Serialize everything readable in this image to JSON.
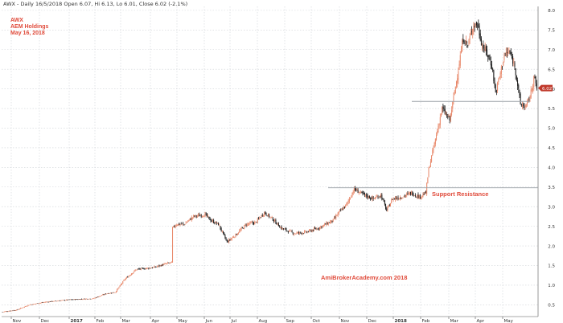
{
  "header": {
    "quote_line": "AWX - Daily 16/5/2018 Open 6.07, Hi 6.13, Lo 6.01, Close 6.02 (-2.1%)"
  },
  "legend": {
    "symbol": "AWX",
    "name": "AEM Holdings",
    "date": "May 16, 2018"
  },
  "annotations": {
    "support_resistance": "Support Resistance",
    "watermark": "AmiBrokerAcademy.com  2018"
  },
  "price_tag": "6.02",
  "colors": {
    "up": "#e8896b",
    "down": "#1a1a1a",
    "grid": "#cfd3d7",
    "line": "#9aa0a6",
    "text_red": "#e04a3a",
    "tag": "#c0392b"
  },
  "chart_data": {
    "type": "candlestick",
    "title": "",
    "ylim": [
      0.2,
      8.1
    ],
    "y_ticks": [
      "0.5",
      "1.0",
      "1.5",
      "2.0",
      "2.5",
      "3.0",
      "3.5",
      "4.0",
      "4.5",
      "5.0",
      "5.5",
      "6.0",
      "6.5",
      "7.0",
      "7.5",
      "8.0"
    ],
    "x_ticks": [
      "Nov",
      "Dec",
      "2017",
      "Feb",
      "Mar",
      "Apr",
      "May",
      "Jun",
      "Jul",
      "Aug",
      "Sep",
      "Oct",
      "Nov",
      "Dec",
      "2018",
      "Feb",
      "Mar",
      "Apr",
      "May"
    ],
    "grid": true,
    "horizontal_lines": [
      {
        "label": "Support Resistance",
        "y": 3.48
      },
      {
        "label": "",
        "y": 5.68
      }
    ],
    "close_knots": [
      {
        "t": 0,
        "v": 0.32
      },
      {
        "t": 15,
        "v": 0.37
      },
      {
        "t": 28,
        "v": 0.5
      },
      {
        "t": 45,
        "v": 0.57
      },
      {
        "t": 70,
        "v": 0.63
      },
      {
        "t": 95,
        "v": 0.66
      },
      {
        "t": 108,
        "v": 0.78
      },
      {
        "t": 118,
        "v": 0.82
      },
      {
        "t": 128,
        "v": 1.15
      },
      {
        "t": 140,
        "v": 1.4
      },
      {
        "t": 158,
        "v": 1.45
      },
      {
        "t": 172,
        "v": 1.55
      },
      {
        "t": 177,
        "v": 1.58
      },
      {
        "t": 178,
        "v": 2.45
      },
      {
        "t": 182,
        "v": 2.55
      },
      {
        "t": 190,
        "v": 2.55
      },
      {
        "t": 200,
        "v": 2.75
      },
      {
        "t": 212,
        "v": 2.8
      },
      {
        "t": 218,
        "v": 2.65
      },
      {
        "t": 226,
        "v": 2.55
      },
      {
        "t": 235,
        "v": 2.1
      },
      {
        "t": 245,
        "v": 2.3
      },
      {
        "t": 255,
        "v": 2.55
      },
      {
        "t": 265,
        "v": 2.6
      },
      {
        "t": 274,
        "v": 2.85
      },
      {
        "t": 282,
        "v": 2.7
      },
      {
        "t": 292,
        "v": 2.45
      },
      {
        "t": 305,
        "v": 2.32
      },
      {
        "t": 318,
        "v": 2.35
      },
      {
        "t": 330,
        "v": 2.45
      },
      {
        "t": 338,
        "v": 2.55
      },
      {
        "t": 346,
        "v": 2.65
      },
      {
        "t": 352,
        "v": 2.85
      },
      {
        "t": 360,
        "v": 3.05
      },
      {
        "t": 368,
        "v": 3.45
      },
      {
        "t": 378,
        "v": 3.3
      },
      {
        "t": 388,
        "v": 3.2
      },
      {
        "t": 396,
        "v": 3.3
      },
      {
        "t": 402,
        "v": 2.9
      },
      {
        "t": 408,
        "v": 3.2
      },
      {
        "t": 418,
        "v": 3.25
      },
      {
        "t": 428,
        "v": 3.35
      },
      {
        "t": 436,
        "v": 3.25
      },
      {
        "t": 443,
        "v": 3.35
      },
      {
        "t": 446,
        "v": 3.95
      },
      {
        "t": 452,
        "v": 4.6
      },
      {
        "t": 460,
        "v": 5.5
      },
      {
        "t": 468,
        "v": 5.2
      },
      {
        "t": 475,
        "v": 6.2
      },
      {
        "t": 482,
        "v": 7.3
      },
      {
        "t": 487,
        "v": 7.1
      },
      {
        "t": 492,
        "v": 7.6
      },
      {
        "t": 497,
        "v": 7.65
      },
      {
        "t": 502,
        "v": 7.1
      },
      {
        "t": 507,
        "v": 6.9
      },
      {
        "t": 512,
        "v": 6.6
      },
      {
        "t": 516,
        "v": 5.9
      },
      {
        "t": 520,
        "v": 6.3
      },
      {
        "t": 525,
        "v": 6.85
      },
      {
        "t": 530,
        "v": 6.95
      },
      {
        "t": 536,
        "v": 6.6
      },
      {
        "t": 542,
        "v": 5.6
      },
      {
        "t": 548,
        "v": 5.55
      },
      {
        "t": 553,
        "v": 5.9
      },
      {
        "t": 556,
        "v": 6.3
      },
      {
        "t": 559,
        "v": 6.02
      }
    ]
  }
}
